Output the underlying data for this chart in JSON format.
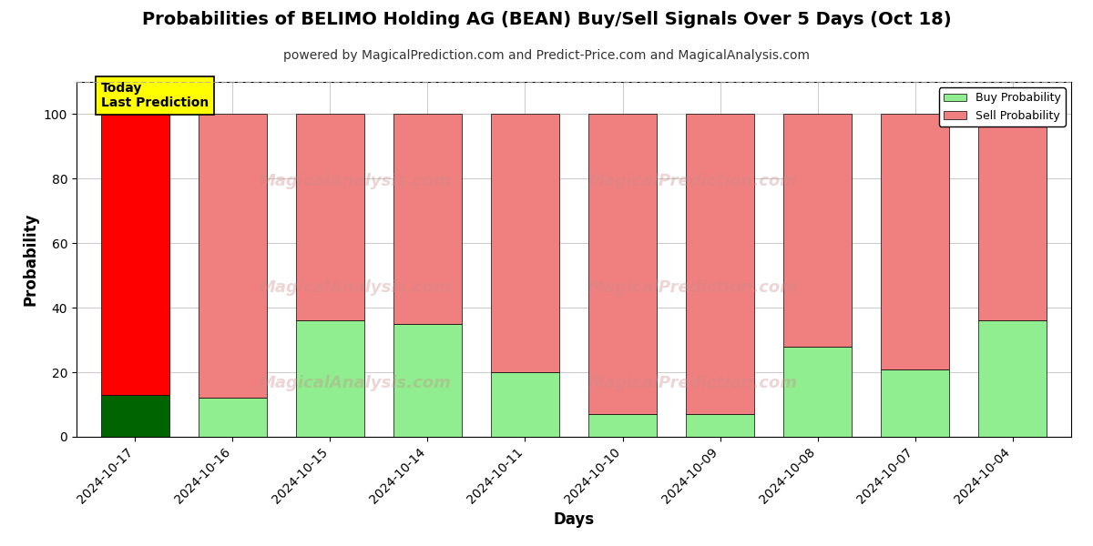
{
  "title": "Probabilities of BELIMO Holding AG (BEAN) Buy/Sell Signals Over 5 Days (Oct 18)",
  "subtitle": "powered by MagicalPrediction.com and Predict-Price.com and MagicalAnalysis.com",
  "xlabel": "Days",
  "ylabel": "Probability",
  "categories": [
    "2024-10-17",
    "2024-10-16",
    "2024-10-15",
    "2024-10-14",
    "2024-10-11",
    "2024-10-10",
    "2024-10-09",
    "2024-10-08",
    "2024-10-07",
    "2024-10-04"
  ],
  "buy_values": [
    13,
    12,
    36,
    35,
    20,
    7,
    7,
    28,
    21,
    36
  ],
  "sell_values": [
    87,
    88,
    64,
    65,
    80,
    93,
    93,
    72,
    79,
    64
  ],
  "today_buy_color": "#006400",
  "today_sell_color": "#ff0000",
  "buy_color": "#90ee90",
  "sell_color": "#f08080",
  "bar_edge_color": "#000000",
  "today_index": 0,
  "ylim": [
    0,
    110
  ],
  "yticks": [
    0,
    20,
    40,
    60,
    80,
    100
  ],
  "dashed_line_y": 110,
  "dashed_line_color": "#aaaaaa",
  "grid_color": "#cccccc",
  "background_color": "#ffffff",
  "today_label_text": "Today\nLast Prediction",
  "today_label_bg": "#ffff00",
  "legend_buy_label": "Buy Probability",
  "legend_sell_label": "Sell Probability",
  "title_fontsize": 14,
  "subtitle_fontsize": 10,
  "axis_label_fontsize": 12,
  "tick_fontsize": 10,
  "bar_width": 0.7
}
